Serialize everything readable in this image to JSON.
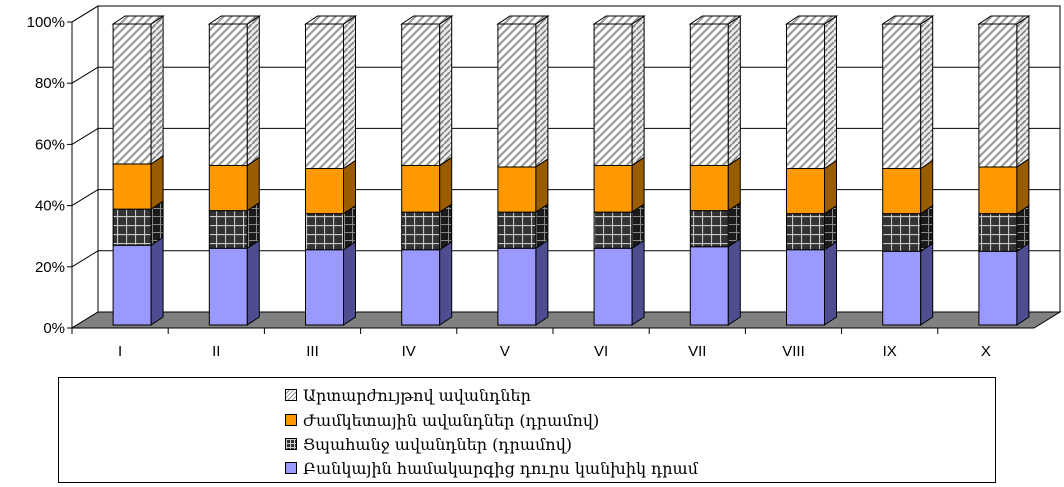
{
  "chart_data": {
    "type": "bar",
    "stacked": true,
    "percent_stacked": true,
    "three_d": true,
    "categories": [
      "I",
      "II",
      "III",
      "IV",
      "V",
      "VI",
      "VII",
      "VIII",
      "IX",
      "X"
    ],
    "y_ticks": [
      "0%",
      "20%",
      "40%",
      "60%",
      "80%",
      "100%"
    ],
    "ylim": [
      0,
      100
    ],
    "grid": true,
    "legend_position": "bottom",
    "series": [
      {
        "name": "Բանկային համակարգից դուրս կանխիկ դրամ",
        "color": "#9999ff",
        "pattern": "solid",
        "values": [
          26.5,
          25.5,
          25.0,
          25.0,
          25.5,
          25.5,
          26.0,
          25.0,
          24.5,
          24.5
        ]
      },
      {
        "name": "Ցպահանջ ավանդներ (դրամով)",
        "color": "#333333",
        "pattern": "grid",
        "values": [
          12.0,
          12.5,
          12.0,
          12.5,
          12.0,
          12.0,
          12.0,
          12.0,
          12.5,
          12.5
        ]
      },
      {
        "name": "Ժամկետային ավանդներ (դրամով)",
        "color": "#ff9900",
        "pattern": "solid",
        "values": [
          15.0,
          15.0,
          15.0,
          15.5,
          15.0,
          15.5,
          15.0,
          15.0,
          15.0,
          15.5
        ]
      },
      {
        "name": "Արտարժույթով ավանդներ",
        "color": "#ffffff",
        "pattern": "diagonal",
        "values": [
          46.5,
          47.0,
          48.0,
          47.0,
          47.5,
          47.0,
          47.0,
          48.0,
          48.0,
          47.5
        ]
      }
    ]
  }
}
